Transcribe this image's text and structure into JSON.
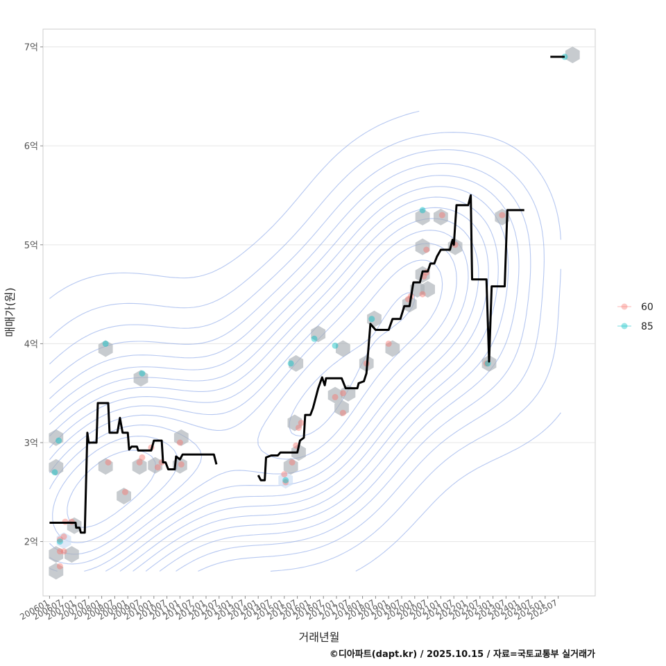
{
  "chart_data": {
    "type": "scatter",
    "title": "",
    "xlabel": "거래년월",
    "ylabel": "매매가(원)",
    "xlim": [
      2005.75,
      2026.92
    ],
    "ylim": [
      1.45,
      7.18
    ],
    "y_ticks": [
      {
        "value": 2,
        "label": "2억"
      },
      {
        "value": 3,
        "label": "3억"
      },
      {
        "value": 4,
        "label": "4억"
      },
      {
        "value": 5,
        "label": "5억"
      },
      {
        "value": 6,
        "label": "6억"
      },
      {
        "value": 7,
        "label": "7억"
      }
    ],
    "x_ticks": [
      {
        "value": 2006.0,
        "label": "200601"
      },
      {
        "value": 2006.5,
        "label": "200607"
      },
      {
        "value": 2007.0,
        "label": "200701"
      },
      {
        "value": 2007.5,
        "label": "200707"
      },
      {
        "value": 2008.0,
        "label": "200801"
      },
      {
        "value": 2008.5,
        "label": "200807"
      },
      {
        "value": 2009.0,
        "label": "200901"
      },
      {
        "value": 2009.5,
        "label": "200907"
      },
      {
        "value": 2010.0,
        "label": "201001"
      },
      {
        "value": 2010.5,
        "label": "201007"
      },
      {
        "value": 2011.0,
        "label": "201101"
      },
      {
        "value": 2011.5,
        "label": "201107"
      },
      {
        "value": 2012.0,
        "label": "201201"
      },
      {
        "value": 2012.5,
        "label": "201207"
      },
      {
        "value": 2013.0,
        "label": "201301"
      },
      {
        "value": 2013.5,
        "label": "201307"
      },
      {
        "value": 2014.0,
        "label": "201401"
      },
      {
        "value": 2014.5,
        "label": "201407"
      },
      {
        "value": 2015.0,
        "label": "201501"
      },
      {
        "value": 2015.5,
        "label": "201507"
      },
      {
        "value": 2016.0,
        "label": "201601"
      },
      {
        "value": 2016.5,
        "label": "201607"
      },
      {
        "value": 2017.0,
        "label": "201701"
      },
      {
        "value": 2017.5,
        "label": "201707"
      },
      {
        "value": 2018.0,
        "label": "201801"
      },
      {
        "value": 2018.5,
        "label": "201807"
      },
      {
        "value": 2019.0,
        "label": "201901"
      },
      {
        "value": 2019.5,
        "label": "201907"
      },
      {
        "value": 2020.0,
        "label": "202001"
      },
      {
        "value": 2020.5,
        "label": "202007"
      },
      {
        "value": 2021.0,
        "label": "202101"
      },
      {
        "value": 2021.5,
        "label": "202107"
      },
      {
        "value": 2022.0,
        "label": "202201"
      },
      {
        "value": 2022.5,
        "label": "202207"
      },
      {
        "value": 2023.0,
        "label": "202301"
      },
      {
        "value": 2023.5,
        "label": "202307"
      },
      {
        "value": 2024.0,
        "label": "202401"
      },
      {
        "value": 2024.5,
        "label": "202407"
      },
      {
        "value": 2025.0,
        "label": "202501"
      },
      {
        "value": 2025.5,
        "label": "202507"
      }
    ],
    "legend": {
      "position": "right",
      "entries": [
        {
          "name": "60",
          "color": "#F8766D"
        },
        {
          "name": "85",
          "color": "#00BFC4"
        }
      ]
    },
    "colors": {
      "area60": "#F8766D",
      "area85": "#00BFC4",
      "trend": "#000000",
      "hexbin": "#A9AFB5",
      "hexbin_light": "#CFE0F5",
      "contour": "#6B8FE3",
      "grid": "#E5E5E5",
      "panel_border": "#CCCCCC"
    },
    "series": [
      {
        "name": "60",
        "points": [
          [
            2006.4,
            1.75
          ],
          [
            2006.4,
            1.9
          ],
          [
            2006.55,
            1.9
          ],
          [
            2006.4,
            2.02
          ],
          [
            2006.55,
            2.05
          ],
          [
            2006.6,
            2.2
          ],
          [
            2006.85,
            2.2
          ],
          [
            2008.25,
            2.8
          ],
          [
            2008.9,
            2.5
          ],
          [
            2009.45,
            2.8
          ],
          [
            2009.55,
            2.85
          ],
          [
            2009.9,
            2.95
          ],
          [
            2010.15,
            2.75
          ],
          [
            2010.3,
            2.8
          ],
          [
            2011.0,
            3.0
          ],
          [
            2011.05,
            2.78
          ],
          [
            2015.05,
            2.6
          ],
          [
            2015.0,
            2.68
          ],
          [
            2015.3,
            2.8
          ],
          [
            2015.45,
            2.97
          ],
          [
            2015.55,
            3.15
          ],
          [
            2015.65,
            3.2
          ],
          [
            2016.95,
            3.46
          ],
          [
            2017.25,
            3.5
          ],
          [
            2017.25,
            3.3
          ],
          [
            2018.15,
            3.8
          ],
          [
            2019.0,
            4.0
          ],
          [
            2019.75,
            4.45
          ],
          [
            2019.85,
            4.48
          ],
          [
            2020.3,
            4.5
          ],
          [
            2020.35,
            4.68
          ],
          [
            2020.45,
            4.72
          ],
          [
            2020.45,
            4.95
          ],
          [
            2021.05,
            5.3
          ],
          [
            2021.55,
            5.0
          ],
          [
            2022.75,
            3.8
          ],
          [
            2023.35,
            5.3
          ]
        ]
      },
      {
        "name": "85",
        "points": [
          [
            2006.2,
            2.7
          ],
          [
            2006.35,
            3.02
          ],
          [
            2006.4,
            2.0
          ],
          [
            2008.15,
            4.0
          ],
          [
            2009.55,
            3.7
          ],
          [
            2015.05,
            2.62
          ],
          [
            2015.25,
            3.8
          ],
          [
            2016.15,
            4.05
          ],
          [
            2016.95,
            3.98
          ],
          [
            2018.35,
            4.25
          ],
          [
            2020.3,
            5.35
          ],
          [
            2022.8,
            3.8
          ],
          [
            2025.75,
            6.9
          ]
        ]
      }
    ],
    "hexbin_centers": [
      [
        2006.25,
        1.7
      ],
      [
        2006.25,
        1.87
      ],
      [
        2006.85,
        1.87
      ],
      [
        2006.55,
        2.01
      ],
      [
        2006.95,
        2.16
      ],
      [
        2006.25,
        2.75
      ],
      [
        2006.25,
        3.05
      ],
      [
        2008.15,
        3.95
      ],
      [
        2008.15,
        2.76
      ],
      [
        2008.85,
        2.46
      ],
      [
        2009.45,
        2.76
      ],
      [
        2010.05,
        2.77
      ],
      [
        2009.5,
        3.65
      ],
      [
        2011.0,
        2.77
      ],
      [
        2011.05,
        3.05
      ],
      [
        2015.05,
        2.62
      ],
      [
        2015.25,
        2.76
      ],
      [
        2015.55,
        2.9
      ],
      [
        2015.4,
        3.2
      ],
      [
        2015.45,
        3.8
      ],
      [
        2016.3,
        4.1
      ],
      [
        2016.95,
        3.48
      ],
      [
        2017.2,
        3.35
      ],
      [
        2017.45,
        3.5
      ],
      [
        2017.25,
        3.95
      ],
      [
        2018.15,
        3.8
      ],
      [
        2018.45,
        4.25
      ],
      [
        2019.15,
        3.95
      ],
      [
        2019.8,
        4.4
      ],
      [
        2020.1,
        4.55
      ],
      [
        2020.3,
        4.7
      ],
      [
        2020.5,
        4.55
      ],
      [
        2020.3,
        4.98
      ],
      [
        2020.3,
        5.28
      ],
      [
        2021.0,
        5.28
      ],
      [
        2021.55,
        4.98
      ],
      [
        2022.85,
        3.8
      ],
      [
        2023.35,
        5.28
      ],
      [
        2026.05,
        6.92
      ]
    ],
    "trend_segments": [
      [
        [
          2006.0,
          2.19
        ],
        [
          2007.0,
          2.19
        ],
        [
          2007.02,
          2.14
        ],
        [
          2007.15,
          2.14
        ],
        [
          2007.2,
          2.09
        ],
        [
          2007.35,
          2.09
        ],
        [
          2007.45,
          3.1
        ],
        [
          2007.5,
          3.0
        ],
        [
          2007.8,
          3.0
        ],
        [
          2007.85,
          3.4
        ],
        [
          2008.25,
          3.4
        ],
        [
          2008.3,
          3.1
        ],
        [
          2008.6,
          3.1
        ],
        [
          2008.7,
          3.25
        ],
        [
          2008.8,
          3.1
        ],
        [
          2009.0,
          3.1
        ],
        [
          2009.05,
          2.93
        ],
        [
          2009.15,
          2.96
        ],
        [
          2009.35,
          2.96
        ],
        [
          2009.4,
          2.92
        ],
        [
          2009.9,
          2.92
        ],
        [
          2010.0,
          3.02
        ],
        [
          2010.3,
          3.02
        ],
        [
          2010.35,
          2.8
        ],
        [
          2010.45,
          2.8
        ],
        [
          2010.55,
          2.73
        ],
        [
          2010.8,
          2.73
        ],
        [
          2010.85,
          2.86
        ],
        [
          2011.0,
          2.83
        ],
        [
          2011.1,
          2.88
        ],
        [
          2012.3,
          2.88
        ],
        [
          2012.4,
          2.78
        ]
      ],
      [
        [
          2014.0,
          2.67
        ],
        [
          2014.1,
          2.62
        ],
        [
          2014.25,
          2.62
        ],
        [
          2014.3,
          2.85
        ],
        [
          2014.5,
          2.87
        ],
        [
          2014.75,
          2.87
        ],
        [
          2014.85,
          2.9
        ],
        [
          2015.5,
          2.9
        ],
        [
          2015.6,
          3.02
        ],
        [
          2015.75,
          3.05
        ],
        [
          2015.8,
          3.28
        ],
        [
          2016.0,
          3.28
        ],
        [
          2016.1,
          3.35
        ],
        [
          2016.3,
          3.55
        ],
        [
          2016.45,
          3.66
        ],
        [
          2016.55,
          3.58
        ],
        [
          2016.6,
          3.65
        ],
        [
          2017.2,
          3.65
        ],
        [
          2017.35,
          3.55
        ],
        [
          2017.8,
          3.55
        ],
        [
          2017.85,
          3.6
        ],
        [
          2018.05,
          3.62
        ],
        [
          2018.15,
          3.7
        ],
        [
          2018.3,
          4.2
        ],
        [
          2018.5,
          4.14
        ],
        [
          2019.0,
          4.14
        ],
        [
          2019.15,
          4.25
        ],
        [
          2019.45,
          4.25
        ],
        [
          2019.6,
          4.38
        ],
        [
          2019.8,
          4.38
        ],
        [
          2019.95,
          4.62
        ],
        [
          2020.2,
          4.62
        ],
        [
          2020.3,
          4.73
        ],
        [
          2020.5,
          4.73
        ],
        [
          2020.6,
          4.81
        ],
        [
          2020.75,
          4.81
        ],
        [
          2020.85,
          4.88
        ],
        [
          2021.0,
          4.95
        ],
        [
          2021.35,
          4.95
        ],
        [
          2021.45,
          5.05
        ],
        [
          2021.5,
          5.0
        ],
        [
          2021.6,
          5.4
        ],
        [
          2022.05,
          5.4
        ],
        [
          2022.15,
          5.5
        ],
        [
          2022.2,
          4.65
        ],
        [
          2022.75,
          4.65
        ],
        [
          2022.85,
          3.82
        ],
        [
          2022.95,
          4.58
        ],
        [
          2023.45,
          4.58
        ],
        [
          2023.55,
          5.35
        ],
        [
          2024.2,
          5.35
        ]
      ],
      [
        [
          2025.2,
          6.9
        ],
        [
          2025.75,
          6.9
        ]
      ]
    ]
  },
  "caption": "©디아파트(dapt.kr) / 2025.10.15 / 자료=국토교통부 실거래가"
}
